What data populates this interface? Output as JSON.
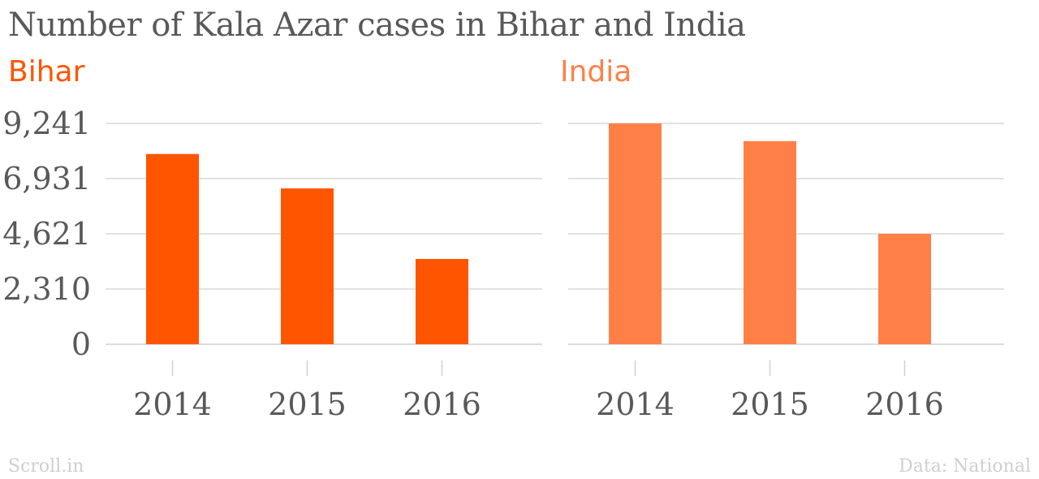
{
  "title": "Number of Kala Azar cases in Bihar and India",
  "source_left": "Scroll.in",
  "source_right": "Data: National",
  "colors": {
    "bihar": "#ff5500",
    "india": "#ff8047",
    "grid": "#d9d9d9",
    "text": "#595959"
  },
  "chart_data": [
    {
      "type": "bar",
      "title": "Bihar",
      "categories": [
        "2014",
        "2015",
        "2016"
      ],
      "values": [
        7961,
        6521,
        3568
      ],
      "yticks": [
        "0",
        "2,310",
        "4,621",
        "6,931",
        "9,241"
      ],
      "ylim": [
        0,
        9241
      ],
      "grid": true
    },
    {
      "type": "bar",
      "title": "India",
      "categories": [
        "2014",
        "2015",
        "2016"
      ],
      "values": [
        9241,
        8500,
        4621
      ],
      "ylim": [
        0,
        9241
      ],
      "grid": true
    }
  ]
}
